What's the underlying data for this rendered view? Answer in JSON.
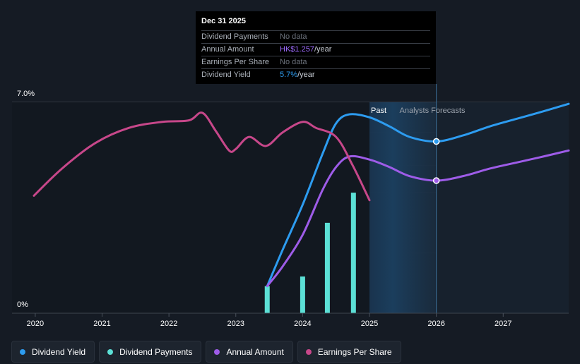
{
  "tooltip": {
    "date": "Dec 31 2025",
    "rows": [
      {
        "label": "Dividend Payments",
        "value": "No data",
        "highlight": "",
        "suffix": ""
      },
      {
        "label": "Annual Amount",
        "value": "",
        "highlight": "HK$1.257",
        "suffix": "/year"
      },
      {
        "label": "Earnings Per Share",
        "value": "No data",
        "highlight": "",
        "suffix": ""
      },
      {
        "label": "Dividend Yield",
        "value": "",
        "highlight": "5.7%",
        "suffix": "/year"
      }
    ]
  },
  "regions": {
    "past_label": "Past",
    "forecast_label": "Analysts Forecasts"
  },
  "legend": [
    {
      "label": "Dividend Yield",
      "color": "#2d9cf0"
    },
    {
      "label": "Dividend Payments",
      "color": "#5ce0d6"
    },
    {
      "label": "Annual Amount",
      "color": "#9e5ce8"
    },
    {
      "label": "Earnings Per Share",
      "color": "#c7478a"
    }
  ],
  "chart_data": {
    "type": "line",
    "title": "",
    "xlabel": "",
    "ylabel": "",
    "xlim": [
      2019.98,
      2027.98
    ],
    "ylim": [
      0,
      7.0
    ],
    "y_tick_labels": [
      {
        "value": 7.0,
        "label": "7.0%"
      },
      {
        "value": 0,
        "label": "0%"
      }
    ],
    "x_ticks": [
      {
        "value": 2020,
        "label": "2020"
      },
      {
        "value": 2021,
        "label": "2021"
      },
      {
        "value": 2022,
        "label": "2022"
      },
      {
        "value": 2023,
        "label": "2023"
      },
      {
        "value": 2024,
        "label": "2024"
      },
      {
        "value": 2025,
        "label": "2025"
      },
      {
        "value": 2026,
        "label": "2026"
      },
      {
        "value": 2027,
        "label": "2027"
      }
    ],
    "past_end": 2025.0,
    "tooltip_x": 2026.0,
    "series": [
      {
        "name": "Dividend Yield",
        "color": "#2d9cf0",
        "x": [
          2023.47,
          2023.7,
          2024.0,
          2024.3,
          2024.5,
          2024.7,
          2025.0,
          2025.3,
          2025.6,
          2026.0,
          2026.4,
          2026.8,
          2027.2,
          2027.6,
          2027.98
        ],
        "y": [
          0.9,
          2.1,
          3.6,
          5.3,
          6.3,
          6.6,
          6.5,
          6.2,
          5.85,
          5.7,
          5.9,
          6.2,
          6.45,
          6.7,
          6.95
        ],
        "marker_x": 2026.0
      },
      {
        "name": "Annual Amount",
        "color": "#9e5ce8",
        "x": [
          2023.47,
          2023.7,
          2024.0,
          2024.3,
          2024.5,
          2024.7,
          2025.0,
          2025.3,
          2025.6,
          2026.0,
          2026.4,
          2026.8,
          2027.2,
          2027.6,
          2027.98
        ],
        "y": [
          0.9,
          1.55,
          2.6,
          4.1,
          4.85,
          5.2,
          5.1,
          4.85,
          4.55,
          4.4,
          4.55,
          4.8,
          5.0,
          5.2,
          5.4
        ],
        "marker_x": 2026.0
      },
      {
        "name": "Earnings Per Share",
        "color": "#c7478a",
        "x": [
          2019.98,
          2020.4,
          2020.9,
          2021.4,
          2021.9,
          2022.3,
          2022.5,
          2022.7,
          2022.9,
          2023.0,
          2023.2,
          2023.45,
          2023.7,
          2024.0,
          2024.2,
          2024.5,
          2024.75,
          2025.0
        ],
        "y": [
          3.9,
          4.8,
          5.65,
          6.15,
          6.35,
          6.4,
          6.65,
          6.05,
          5.4,
          5.45,
          5.85,
          5.55,
          6.0,
          6.35,
          6.15,
          5.85,
          4.9,
          3.75
        ]
      }
    ],
    "bars": {
      "name": "Dividend Payments",
      "color": "#5ce0d6",
      "x": [
        2023.47,
        2024.0,
        2024.37,
        2024.76
      ],
      "values": [
        0.9,
        1.22,
        3.0,
        4.0
      ]
    }
  }
}
